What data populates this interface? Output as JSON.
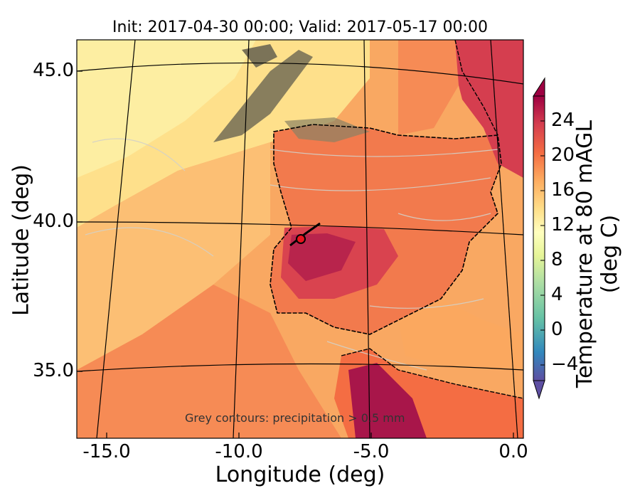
{
  "title": "Init: 2017-04-30 00:00; Valid: 2017-05-17 00:00",
  "map": {
    "x_label": "Longitude (deg)",
    "y_label": "Latitude (deg)",
    "x_ticks": [
      "-15.0",
      "-10.0",
      "-5.0",
      "0.0"
    ],
    "y_ticks": [
      "45.0",
      "40.0",
      "35.0"
    ],
    "annotation": "Grey contours: precipitation > 0.5 mm",
    "marker": {
      "lon": -7.6,
      "lat": 39.6,
      "color": "#e8141e"
    }
  },
  "colorbar": {
    "label": "Temperature at 80 mAGL (deg C)",
    "ticks": [
      "24",
      "20",
      "16",
      "12",
      "8",
      "4",
      "0",
      "−4"
    ],
    "colormap": "Spectral_r",
    "colors": [
      "#5e4fa2",
      "#3288bd",
      "#66c2a5",
      "#abdda4",
      "#e6f598",
      "#ffffbf",
      "#fee08b",
      "#fdae61",
      "#f46d43",
      "#d53e4f",
      "#9e0142"
    ]
  }
}
